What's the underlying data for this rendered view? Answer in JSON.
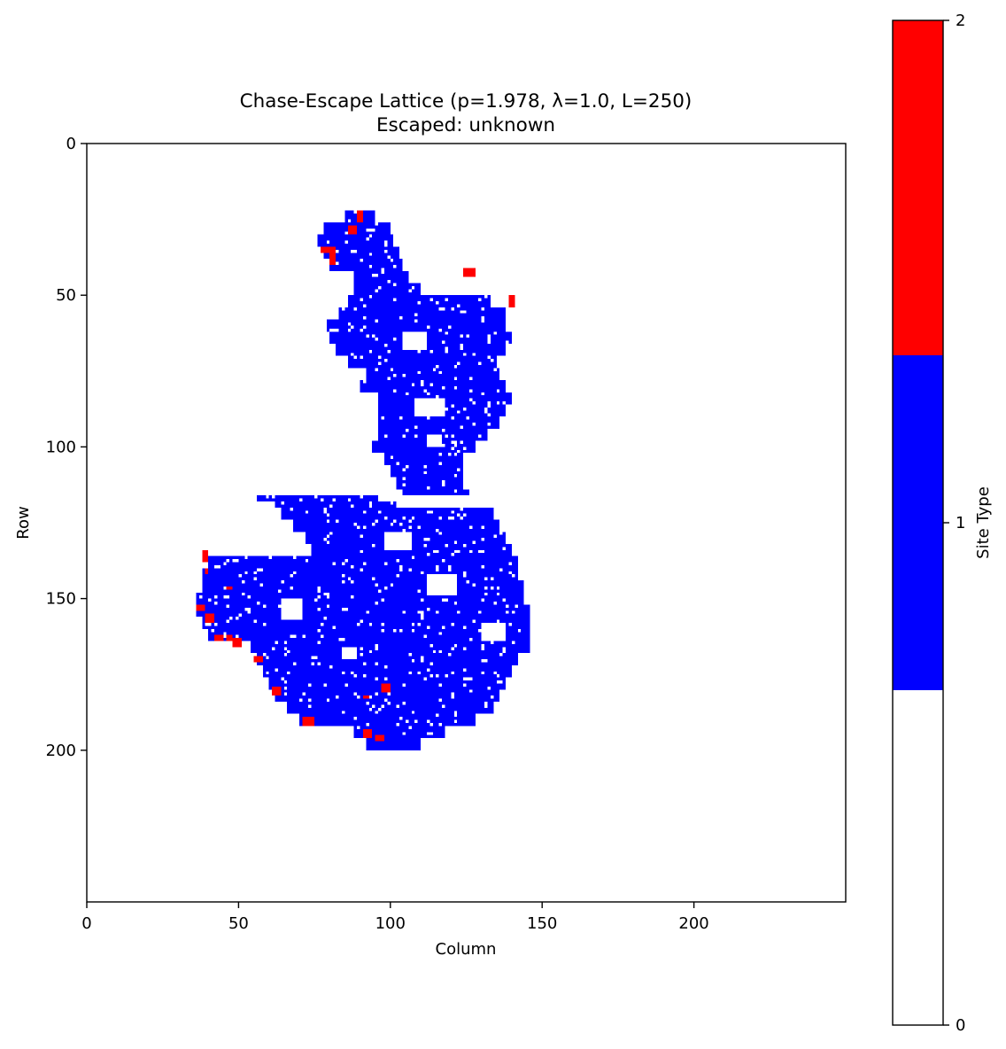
{
  "chart_data": {
    "type": "heatmap",
    "title": "Chase-Escape Lattice (p=1.978, λ=1.0, L=250)",
    "subtitle": "Escaped: unknown",
    "xlabel": "Column",
    "ylabel": "Row",
    "xlim": [
      0,
      250
    ],
    "ylim": [
      250,
      0
    ],
    "xticks": [
      0,
      50,
      100,
      150,
      200
    ],
    "yticks": [
      0,
      50,
      100,
      150,
      200
    ],
    "grid": false,
    "colors": {
      "0": "#ffffff",
      "1": "#0000ff",
      "2": "#ff0000"
    },
    "colorbar": {
      "label": "Site Type",
      "ticks": [
        0,
        1,
        2
      ],
      "range": [
        0,
        2
      ],
      "levels": [
        {
          "value": 0,
          "color": "#ffffff"
        },
        {
          "value": 1,
          "color": "#0000ff"
        },
        {
          "value": 2,
          "color": "#ff0000"
        }
      ]
    },
    "blue_cluster_rows": [
      [
        22,
        85,
        95
      ],
      [
        26,
        78,
        100
      ],
      [
        30,
        76,
        101
      ],
      [
        34,
        78,
        103
      ],
      [
        38,
        80,
        104
      ],
      [
        42,
        88,
        106
      ],
      [
        46,
        88,
        110
      ],
      [
        50,
        86,
        133
      ],
      [
        54,
        83,
        138
      ],
      [
        58,
        79,
        138
      ],
      [
        62,
        80,
        140
      ],
      [
        66,
        82,
        138
      ],
      [
        70,
        86,
        135
      ],
      [
        74,
        92,
        136
      ],
      [
        78,
        90,
        138
      ],
      [
        82,
        96,
        140
      ],
      [
        86,
        96,
        138
      ],
      [
        90,
        96,
        136
      ],
      [
        94,
        96,
        132
      ],
      [
        98,
        94,
        128
      ],
      [
        102,
        98,
        124
      ],
      [
        106,
        100,
        124
      ],
      [
        110,
        102,
        124
      ],
      [
        114,
        104,
        126
      ],
      [
        116,
        56,
        96
      ],
      [
        118,
        62,
        102
      ],
      [
        120,
        64,
        134
      ],
      [
        124,
        68,
        136
      ],
      [
        128,
        72,
        138
      ],
      [
        132,
        74,
        140
      ],
      [
        136,
        40,
        142
      ],
      [
        140,
        38,
        142
      ],
      [
        144,
        38,
        144
      ],
      [
        148,
        36,
        144
      ],
      [
        152,
        36,
        146
      ],
      [
        156,
        38,
        146
      ],
      [
        160,
        40,
        146
      ],
      [
        164,
        54,
        146
      ],
      [
        168,
        56,
        142
      ],
      [
        172,
        58,
        140
      ],
      [
        176,
        60,
        138
      ],
      [
        180,
        62,
        136
      ],
      [
        184,
        66,
        134
      ],
      [
        188,
        70,
        128
      ],
      [
        192,
        88,
        118
      ],
      [
        196,
        92,
        110
      ]
    ],
    "blue_holes": [
      [
        62,
        104,
        8,
        6
      ],
      [
        84,
        108,
        10,
        6
      ],
      [
        96,
        112,
        5,
        4
      ],
      [
        128,
        98,
        9,
        6
      ],
      [
        142,
        112,
        10,
        7
      ],
      [
        150,
        64,
        7,
        7
      ],
      [
        158,
        130,
        8,
        6
      ],
      [
        166,
        84,
        5,
        4
      ],
      [
        110,
        96,
        6,
        3
      ]
    ],
    "red_sites": [
      [
        22,
        89,
        2,
        4
      ],
      [
        27,
        86,
        3,
        3
      ],
      [
        34,
        77,
        5,
        2
      ],
      [
        36,
        80,
        2,
        4
      ],
      [
        41,
        124,
        4,
        3
      ],
      [
        50,
        139,
        2,
        4
      ],
      [
        134,
        38,
        2,
        4
      ],
      [
        140,
        39,
        1,
        2
      ],
      [
        146,
        46,
        2,
        1
      ],
      [
        152,
        36,
        3,
        2
      ],
      [
        155,
        39,
        3,
        3
      ],
      [
        162,
        42,
        3,
        2
      ],
      [
        162,
        46,
        2,
        2
      ],
      [
        163,
        48,
        3,
        3
      ],
      [
        169,
        55,
        3,
        2
      ],
      [
        179,
        61,
        3,
        3
      ],
      [
        178,
        97,
        3,
        3
      ],
      [
        182,
        91,
        2,
        1
      ],
      [
        189,
        71,
        4,
        3
      ],
      [
        193,
        91,
        3,
        3
      ],
      [
        195,
        95,
        3,
        2
      ]
    ]
  }
}
